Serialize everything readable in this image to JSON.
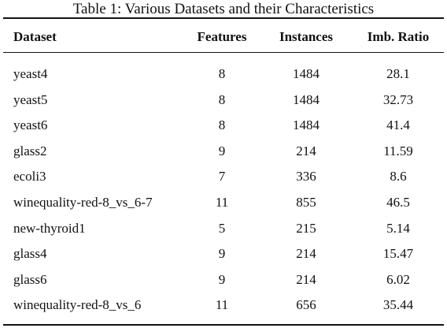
{
  "caption": "Table 1: Various Datasets and their Characteristics",
  "headers": [
    "Dataset",
    "Features",
    "Instances",
    "Imb. Ratio"
  ],
  "rows": [
    [
      "yeast4",
      "8",
      "1484",
      "28.1"
    ],
    [
      "yeast5",
      "8",
      "1484",
      "32.73"
    ],
    [
      "yeast6",
      "8",
      "1484",
      "41.4"
    ],
    [
      "glass2",
      "9",
      "214",
      "11.59"
    ],
    [
      "ecoli3",
      "7",
      "336",
      "8.6"
    ],
    [
      "winequality-red-8_vs_6-7",
      "11",
      "855",
      "46.5"
    ],
    [
      "new-thyroid1",
      "5",
      "215",
      "5.14"
    ],
    [
      "glass4",
      "9",
      "214",
      "15.47"
    ],
    [
      "glass6",
      "9",
      "214",
      "6.02"
    ],
    [
      "winequality-red-8_vs_6",
      "11",
      "656",
      "35.44"
    ]
  ]
}
